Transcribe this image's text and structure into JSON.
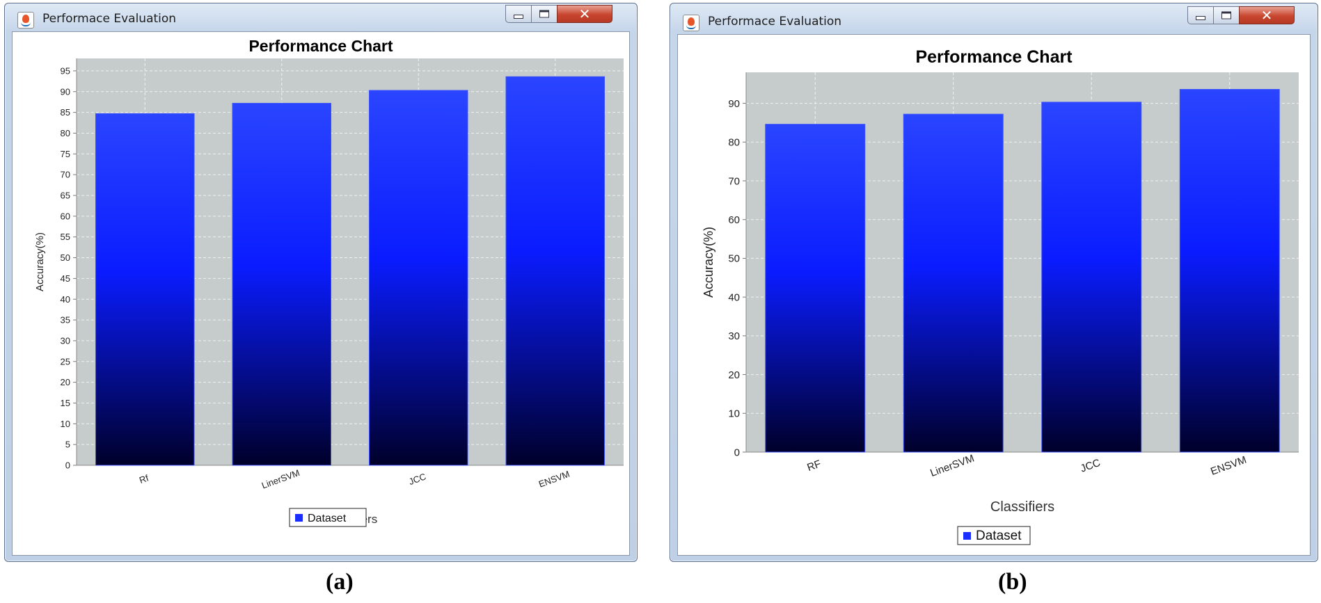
{
  "windows": [
    {
      "title": "Performace Evaluation",
      "caption": "(a)",
      "chart_data": {
        "type": "bar",
        "title": "Performance Chart",
        "xlabel": "Classifiers",
        "ylabel": "Accuracy(%)",
        "categories": [
          "Rf",
          "LinerSVM",
          "JCC",
          "ENSVM"
        ],
        "series": [
          {
            "name": "Dataset",
            "values": [
              84.7,
              87.2,
              90.3,
              93.6
            ]
          }
        ],
        "ylim": [
          0,
          98
        ],
        "yticks": [
          0,
          5,
          10,
          15,
          20,
          25,
          30,
          35,
          40,
          45,
          50,
          55,
          60,
          65,
          70,
          75,
          80,
          85,
          90,
          95
        ],
        "grid": true,
        "legend": "bottom-center",
        "colors": {
          "bar_top": "#2a45ff",
          "bar_bottom": "#00002a",
          "plot_bg": "#c5cccb"
        }
      }
    },
    {
      "title": "Performace Evaluation",
      "caption": "(b)",
      "chart_data": {
        "type": "bar",
        "title": "Performance Chart",
        "xlabel": "Classifiers",
        "ylabel": "Accuracy(%)",
        "categories": [
          "RF",
          "LinerSVM",
          "JCC",
          "ENSVM"
        ],
        "series": [
          {
            "name": "Dataset",
            "values": [
              84.6,
              87.2,
              90.3,
              93.6
            ]
          }
        ],
        "ylim": [
          0,
          98
        ],
        "yticks": [
          0,
          10,
          20,
          30,
          40,
          50,
          60,
          70,
          80,
          90
        ],
        "grid": true,
        "legend": "bottom-center",
        "colors": {
          "bar_top": "#2a45ff",
          "bar_bottom": "#00002a",
          "plot_bg": "#c5cccb"
        }
      }
    }
  ]
}
